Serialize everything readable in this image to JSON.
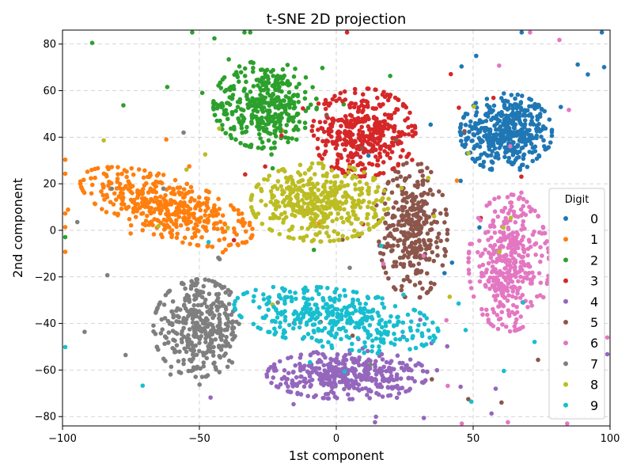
{
  "chart_data": {
    "type": "scatter",
    "title": "t-SNE 2D projection",
    "xlabel": "1st component",
    "ylabel": "2nd component",
    "xlim": [
      -100,
      100
    ],
    "ylim": [
      -84,
      86
    ],
    "xticks": [
      -100,
      -50,
      0,
      50,
      100
    ],
    "yticks": [
      -80,
      -60,
      -40,
      -20,
      0,
      20,
      40,
      60,
      80
    ],
    "xtick_labels": [
      "−100",
      "−50",
      "0",
      "50",
      "100"
    ],
    "ytick_labels": [
      "−80",
      "−60",
      "−40",
      "−20",
      "0",
      "20",
      "40",
      "60",
      "80"
    ],
    "grid": true,
    "legend": {
      "title": "Digit",
      "placement": "right"
    },
    "series": [
      {
        "name": "0",
        "color": "#1f77b4",
        "cluster": {
          "center": [
            62,
            42
          ],
          "spread": [
            8,
            8
          ],
          "rotation": 0,
          "count": 420
        }
      },
      {
        "name": "1",
        "color": "#ff7f0e",
        "cluster": {
          "center": [
            -62,
            10
          ],
          "spread": [
            16,
            6
          ],
          "rotation": -22,
          "count": 420
        }
      },
      {
        "name": "2",
        "color": "#2ca02c",
        "cluster": {
          "center": [
            -26,
            54
          ],
          "spread": [
            9,
            9
          ],
          "rotation": 0,
          "count": 380
        }
      },
      {
        "name": "3",
        "color": "#d62728",
        "cluster": {
          "center": [
            10,
            42
          ],
          "spread": [
            9,
            9
          ],
          "rotation": 0,
          "count": 400
        }
      },
      {
        "name": "4",
        "color": "#9467bd",
        "cluster": {
          "center": [
            4,
            -62
          ],
          "spread": [
            14,
            5
          ],
          "rotation": 0,
          "count": 380
        }
      },
      {
        "name": "5",
        "color": "#8c564b",
        "cluster": {
          "center": [
            28,
            0
          ],
          "spread": [
            6,
            14
          ],
          "rotation": 0,
          "count": 320
        }
      },
      {
        "name": "6",
        "color": "#e377c2",
        "cluster": {
          "center": [
            63,
            -14
          ],
          "spread": [
            7,
            14
          ],
          "rotation": 0,
          "count": 380
        }
      },
      {
        "name": "7",
        "color": "#7f7f7f",
        "cluster": {
          "center": [
            -50,
            -42
          ],
          "spread": [
            8,
            10
          ],
          "rotation": 0,
          "count": 360
        }
      },
      {
        "name": "8",
        "color": "#bcbd22",
        "cluster": {
          "center": [
            -6,
            12
          ],
          "spread": [
            12,
            8
          ],
          "rotation": 0,
          "count": 420
        }
      },
      {
        "name": "9",
        "color": "#17becf",
        "cluster": {
          "center": [
            0,
            -38
          ],
          "spread": [
            18,
            6
          ],
          "rotation": -10,
          "count": 380
        }
      }
    ]
  }
}
